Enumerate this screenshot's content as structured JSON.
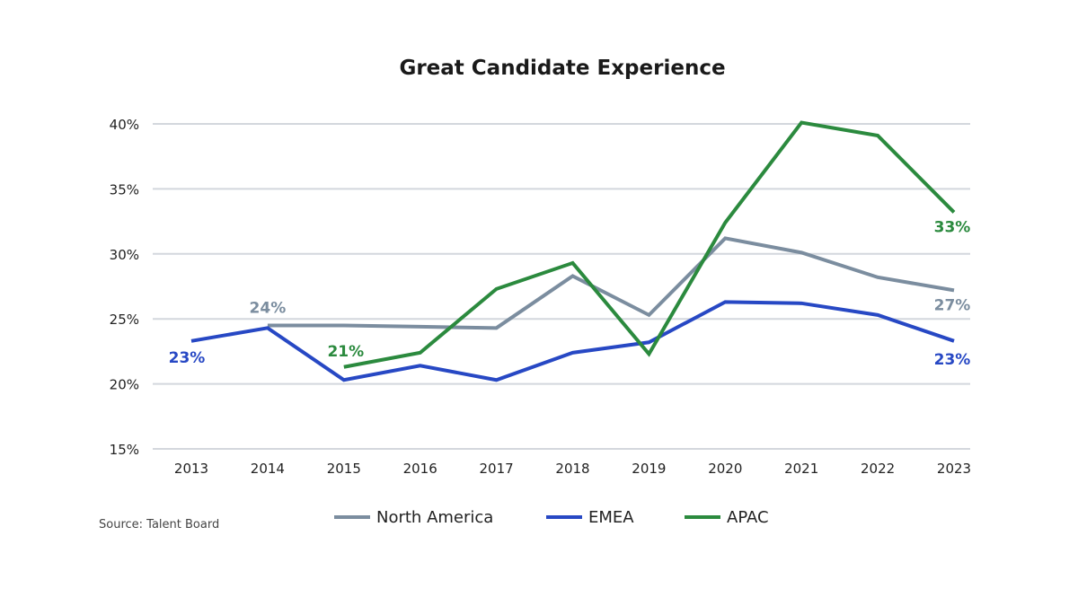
{
  "chart_data": {
    "type": "line",
    "title": "Great Candidate Experience",
    "xlabel": "",
    "ylabel": "",
    "x": [
      "2013",
      "2014",
      "2015",
      "2016",
      "2017",
      "2018",
      "2019",
      "2020",
      "2021",
      "2022",
      "2023"
    ],
    "ylim": [
      15,
      40
    ],
    "yticks": [
      "15%",
      "20%",
      "25%",
      "30%",
      "35%",
      "40%"
    ],
    "ytick_values": [
      15,
      20,
      25,
      30,
      35,
      40
    ],
    "grid": "horizontal",
    "legend_position": "bottom",
    "series": [
      {
        "name": "North America",
        "color": "#7b8d9f",
        "values": [
          null,
          24.5,
          24.5,
          24.4,
          24.3,
          28.3,
          25.3,
          31.2,
          30.1,
          28.2,
          27.2
        ],
        "labels": [
          {
            "x": "2014",
            "text": "24%"
          },
          {
            "x": "2023",
            "text": "27%"
          }
        ]
      },
      {
        "name": "EMEA",
        "color": "#2748c4",
        "values": [
          23.3,
          24.3,
          20.3,
          21.4,
          20.3,
          22.4,
          23.2,
          26.3,
          26.2,
          25.3,
          23.3
        ],
        "labels": [
          {
            "x": "2013",
            "text": "23%"
          },
          {
            "x": "2023",
            "text": "23%"
          }
        ]
      },
      {
        "name": "APAC",
        "color": "#2b8a3e",
        "values": [
          null,
          null,
          21.3,
          22.4,
          27.3,
          29.3,
          22.3,
          32.4,
          40.1,
          39.1,
          33.2
        ],
        "labels": [
          {
            "x": "2015",
            "text": "21%"
          },
          {
            "x": "2023",
            "text": "33%"
          }
        ]
      }
    ],
    "source": "Source: Talent Board"
  }
}
